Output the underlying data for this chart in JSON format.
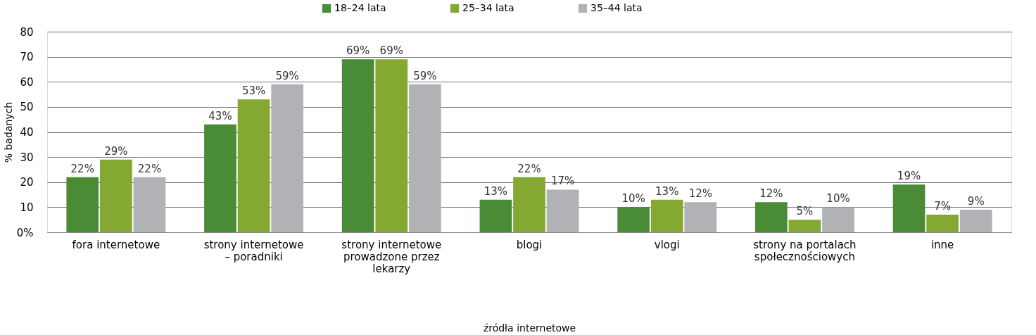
{
  "chart_data": {
    "type": "bar",
    "xlabel": "źródła internetowe",
    "ylabel": "% badanych",
    "categories": [
      "fora internetowe",
      "strony internetowe\n– poradniki",
      "strony internetowe\nprowadzone przez\nlekarzy",
      "blogi",
      "vlogi",
      "strony na portalach\nspołecznościowych",
      "inne"
    ],
    "series": [
      {
        "name": "18–24 lata",
        "color": "#4a8c35",
        "values": [
          22,
          43,
          69,
          13,
          10,
          12,
          19
        ],
        "value_labels": [
          "22%",
          "43%",
          "69%",
          "13%",
          "10%",
          "12%",
          "19%"
        ]
      },
      {
        "name": "25–34 lata",
        "color": "#84a832",
        "values": [
          29,
          53,
          69,
          22,
          13,
          5,
          7
        ],
        "value_labels": [
          "29%",
          "53%",
          "69%",
          "22%",
          "13%",
          "5%",
          "7%"
        ]
      },
      {
        "name": "35–44 lata",
        "color": "#b1b2b5",
        "values": [
          22,
          59,
          59,
          17,
          12,
          10,
          9
        ],
        "value_labels": [
          "22%",
          "59%",
          "59%",
          "17%",
          "12%",
          "10%",
          "9%"
        ]
      }
    ],
    "ylim": [
      0,
      80
    ],
    "yticks": [
      {
        "value": 0,
        "label": "0%"
      },
      10,
      20,
      30,
      40,
      50,
      60,
      70,
      80
    ],
    "grid": "y",
    "legend": "top"
  }
}
